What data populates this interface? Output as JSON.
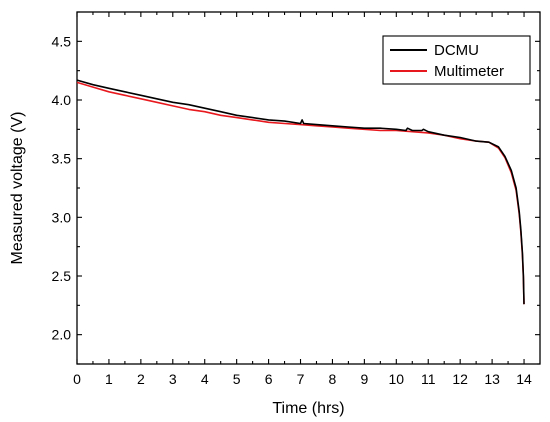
{
  "chart_data": {
    "type": "line",
    "title": "",
    "xlabel": "Time (hrs)",
    "ylabel": "Measured voltage (V)",
    "xlim": [
      0,
      14.5
    ],
    "ylim": [
      1.75,
      4.75
    ],
    "xticks": [
      0,
      1,
      2,
      3,
      4,
      5,
      6,
      7,
      8,
      9,
      10,
      11,
      12,
      13,
      14
    ],
    "yticks": [
      2.0,
      2.5,
      3.0,
      3.5,
      4.0,
      4.5
    ],
    "xtick_labels": [
      "0",
      "1",
      "2",
      "3",
      "4",
      "5",
      "6",
      "7",
      "8",
      "9",
      "10",
      "11",
      "12",
      "13",
      "14"
    ],
    "ytick_labels": [
      "2.0",
      "2.5",
      "3.0",
      "3.5",
      "4.0",
      "4.5"
    ],
    "grid": false,
    "legend": "top-right",
    "series": [
      {
        "name": "DCMU",
        "color": "#000000",
        "x": [
          0,
          0.5,
          1,
          1.5,
          2,
          2.5,
          3,
          3.5,
          4,
          4.5,
          5,
          5.5,
          6,
          6.5,
          7,
          7.05,
          7.1,
          7.5,
          8,
          8.5,
          9,
          9.5,
          10,
          10.3,
          10.35,
          10.5,
          10.8,
          10.85,
          11,
          11.5,
          12,
          12.5,
          12.9,
          13.2,
          13.4,
          13.6,
          13.75,
          13.85,
          13.9,
          13.95,
          13.98,
          14.0
        ],
        "values": [
          4.17,
          4.13,
          4.1,
          4.07,
          4.04,
          4.01,
          3.98,
          3.96,
          3.93,
          3.9,
          3.87,
          3.85,
          3.83,
          3.82,
          3.8,
          3.83,
          3.8,
          3.79,
          3.78,
          3.77,
          3.76,
          3.76,
          3.75,
          3.74,
          3.76,
          3.74,
          3.74,
          3.75,
          3.73,
          3.7,
          3.68,
          3.65,
          3.64,
          3.6,
          3.52,
          3.4,
          3.25,
          3.05,
          2.9,
          2.7,
          2.5,
          2.26
        ]
      },
      {
        "name": "Multimeter",
        "color": "#e8191e",
        "x": [
          0,
          0.5,
          1,
          1.5,
          2,
          2.5,
          3,
          3.5,
          4,
          4.5,
          5,
          5.5,
          6,
          6.5,
          7,
          7.5,
          8,
          8.5,
          9,
          9.5,
          10,
          10.5,
          11,
          11.5,
          12,
          12.5,
          12.9,
          13.2,
          13.4,
          13.6,
          13.75,
          13.85,
          13.9,
          13.95,
          13.98,
          14.0
        ],
        "values": [
          4.15,
          4.11,
          4.07,
          4.04,
          4.01,
          3.98,
          3.95,
          3.92,
          3.9,
          3.87,
          3.85,
          3.83,
          3.81,
          3.8,
          3.79,
          3.78,
          3.77,
          3.76,
          3.75,
          3.74,
          3.74,
          3.73,
          3.72,
          3.7,
          3.67,
          3.65,
          3.64,
          3.59,
          3.51,
          3.38,
          3.23,
          3.03,
          2.88,
          2.68,
          2.48,
          2.26
        ]
      }
    ]
  }
}
